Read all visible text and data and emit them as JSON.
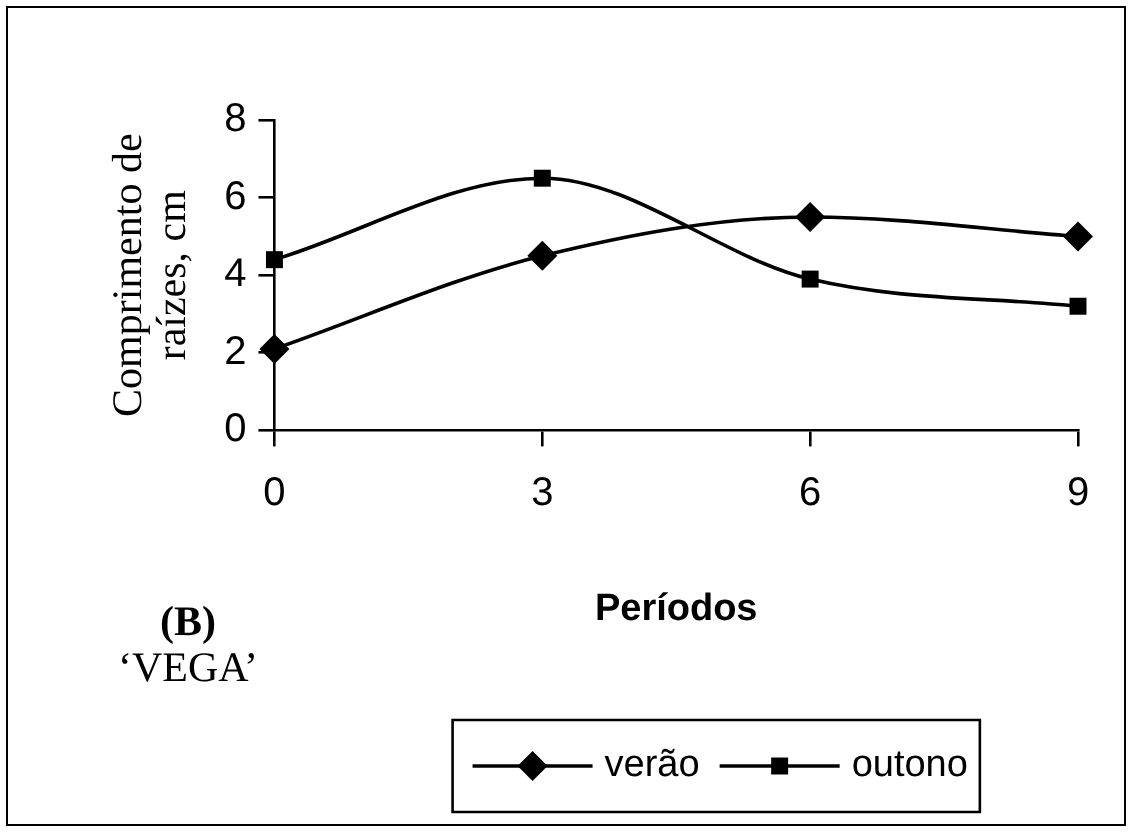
{
  "chart_data": {
    "type": "line",
    "xlabel": "Períodos",
    "ylabel": "Comprimento de raízes, cm",
    "x": [
      0,
      3,
      6,
      9
    ],
    "xlim": [
      0,
      9
    ],
    "xticks": [
      0,
      3,
      6,
      9
    ],
    "ylim": [
      0,
      8
    ],
    "yticks": [
      0,
      2,
      4,
      6,
      8
    ],
    "series": [
      {
        "name": "verão",
        "color": "#000000",
        "marker": "diamond",
        "values": [
          2.1,
          4.5,
          5.5,
          5.0
        ]
      },
      {
        "name": "outono",
        "color": "#000000",
        "marker": "square",
        "values": [
          4.4,
          6.5,
          3.9,
          3.2
        ]
      }
    ],
    "annotations": [
      "(B)",
      "‘VEGA’"
    ],
    "grid": false,
    "legend": "bottom",
    "line_style": "solid"
  }
}
